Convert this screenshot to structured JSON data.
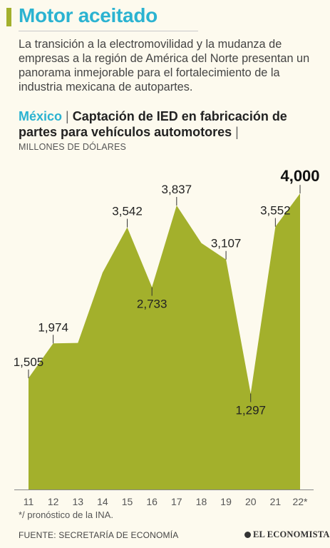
{
  "header": {
    "title": "Motor aceitado",
    "intro": "La transición a la electromovilidad y la mudanza de empresas a la región de América del Norte presentan un panorama inmejorable para el fortalecimiento de la industria mexicana de autopartes.",
    "country": "México",
    "separator": "|",
    "subtitle": "Captación de IED en fabricación de partes para vehículos automotores",
    "trailing_separator": "|",
    "units": "MILLONES DE DÓLARES"
  },
  "chart_data": {
    "type": "area",
    "x": [
      "11",
      "12",
      "13",
      "14",
      "15",
      "16",
      "17",
      "18",
      "19",
      "20",
      "21",
      "22*"
    ],
    "values": [
      1505,
      1974,
      1980,
      2930,
      3542,
      2733,
      3837,
      3330,
      3107,
      1297,
      3552,
      4000
    ],
    "data_labels": {
      "11": "1,505",
      "12": "1,974",
      "15": "3,542",
      "16": "2,733",
      "17": "3,837",
      "19": "3,107",
      "20": "1,297",
      "21": "3,552",
      "22*": "4,000"
    },
    "ylim": [
      0,
      4300
    ],
    "fill_color": "#a3b02c",
    "highlight_label": "22*"
  },
  "footnote": "*/ pronóstico de la INA.",
  "source": "FUENTE: SECRETARÍA DE ECONOMÍA",
  "brand": "EL ECONOMISTA"
}
